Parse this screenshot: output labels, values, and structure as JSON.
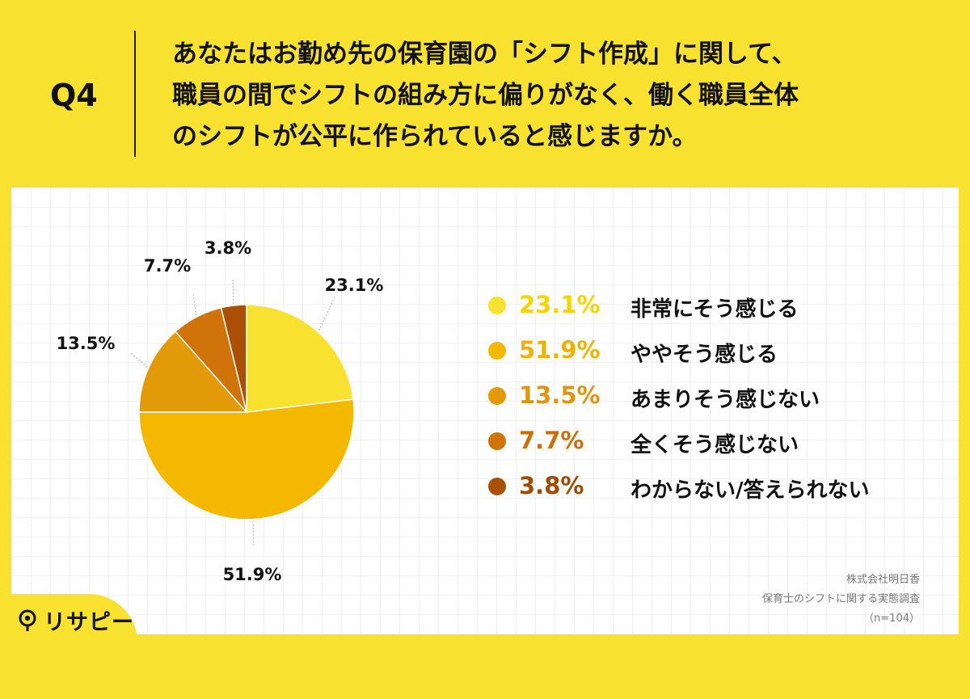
{
  "header": {
    "q_label": "Q4",
    "question_lines": [
      "あなたはお勤め先の保育園の「シフト作成」に関して、",
      "職員の間でシフトの組み方に偏りがなく、働く職員全体",
      "のシフトが公平に作られていると感じますか。"
    ]
  },
  "chart_data": {
    "type": "pie",
    "categories": [
      "非常にそう感じる",
      "ややそう感じる",
      "あまりそう感じない",
      "全くそう感じない",
      "わからない/答えられない"
    ],
    "values": [
      23.1,
      51.9,
      13.5,
      7.7,
      3.8
    ],
    "labels": [
      "23.1%",
      "51.9%",
      "13.5%",
      "7.7%",
      "3.8%"
    ],
    "colors": [
      "#f8e12f",
      "#f5b800",
      "#e39a08",
      "#d07308",
      "#a95004"
    ],
    "legend_pct_colors": [
      "#f5d400",
      "#f0b000",
      "#df9510",
      "#cc6f08",
      "#a04c04"
    ],
    "start_angle": "12 o'clock",
    "direction": "clockwise",
    "legend_position": "right"
  },
  "source": {
    "company": "株式会社明日香",
    "survey": "保育士のシフトに関する実態調査",
    "n": "（n=104）"
  },
  "logo": {
    "text": "リサピー",
    "icon": "magnifier-pin-icon"
  }
}
